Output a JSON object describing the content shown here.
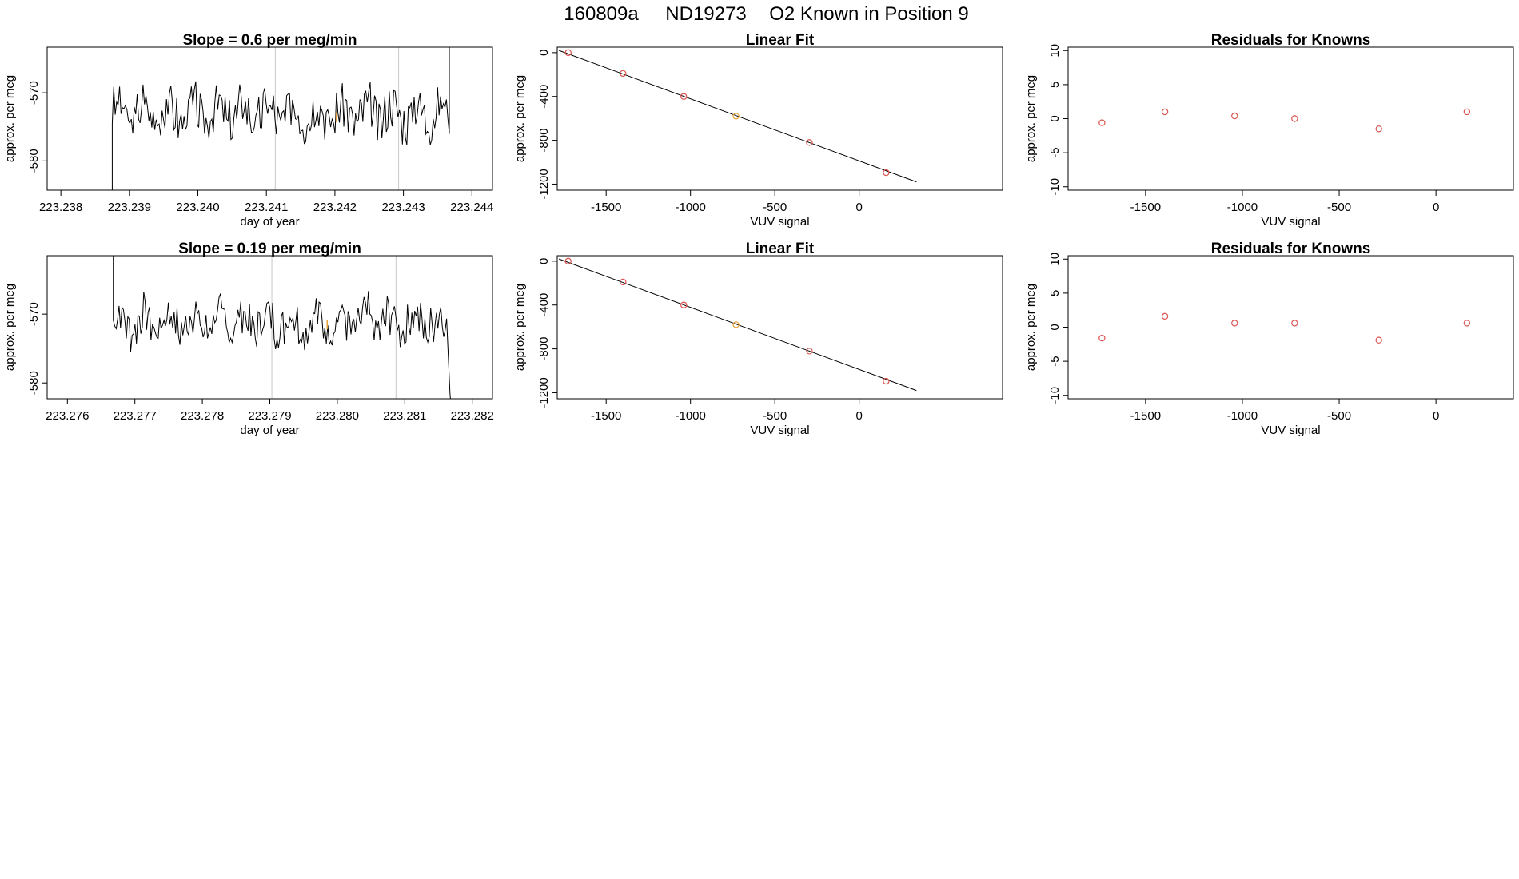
{
  "page": {
    "title_run": "160809a",
    "title_tank": "ND19273",
    "title_desc": "O2 Known in Position  9"
  },
  "chart_data": [
    {
      "id": "p1",
      "type": "line",
      "title": "Slope =  0.6  per meg/min",
      "xlabel": "day of year",
      "ylabel": "approx. per meg",
      "xlim": [
        223.2378,
        223.2443
      ],
      "ylim": [
        -584.3,
        -563.3
      ],
      "xticks": [
        223.238,
        223.239,
        223.24,
        223.241,
        223.242,
        223.243,
        223.244
      ],
      "xtick_labels": [
        "223.238",
        "223.239",
        "223.240",
        "223.241",
        "223.242",
        "223.243",
        "223.244"
      ],
      "yticks": [
        -580,
        -570
      ],
      "ytick_labels": [
        "-580",
        "-570"
      ],
      "vlines": [
        223.24113,
        223.24293
      ],
      "marker": {
        "x": 223.24202,
        "y": -573.6,
        "color": "#e8a23a"
      },
      "series_seed": 3,
      "trace_start": 223.23875,
      "trace_end": 223.24367,
      "trace_base": -573.0,
      "trace_amp": 3.4
    },
    {
      "id": "p2",
      "type": "scatter",
      "title": "Linear Fit",
      "xlabel": "VUV signal",
      "ylabel": "approx. per meg",
      "xlim": [
        -1790,
        850
      ],
      "ylim": [
        -1255,
        50
      ],
      "xticks": [
        -1500,
        -1000,
        -500,
        0
      ],
      "xtick_labels": [
        "-1500",
        "-1000",
        "-500",
        "0"
      ],
      "yticks": [
        0,
        -400,
        -800,
        -1200
      ],
      "ytick_labels": [
        "0",
        "-400",
        "-800",
        "-1200"
      ],
      "x": [
        -1725,
        -1400,
        -1040,
        -730,
        -295,
        160
      ],
      "y": [
        0,
        -190,
        -400,
        -580,
        -820,
        -1095
      ],
      "point_colors": [
        "#d9534f",
        "#d9534f",
        "#d9534f",
        "#e8a23a",
        "#d9534f",
        "#d9534f"
      ],
      "fit_line": {
        "x": [
          -1780,
          340
        ],
        "y": [
          20,
          -1180
        ]
      }
    },
    {
      "id": "p3",
      "type": "scatter",
      "title": "Residuals for Knowns",
      "xlabel": "VUV signal",
      "ylabel": "approx. per meg",
      "xlim": [
        -1900,
        400
      ],
      "ylim": [
        -10.5,
        10.5
      ],
      "xticks": [
        -1500,
        -1000,
        -500,
        0
      ],
      "xtick_labels": [
        "-1500",
        "-1000",
        "-500",
        "0"
      ],
      "yticks": [
        -10,
        -5,
        0,
        5,
        10
      ],
      "ytick_labels": [
        "-10",
        "-5",
        "0",
        "5",
        "10"
      ],
      "x": [
        -1725,
        -1400,
        -1040,
        -730,
        -295,
        160
      ],
      "y": [
        -0.6,
        1.0,
        0.4,
        0.0,
        -1.5,
        1.0
      ],
      "point_colors": [
        "#d9534f",
        "#d9534f",
        "#d9534f",
        "#d9534f",
        "#d9534f",
        "#d9534f"
      ]
    },
    {
      "id": "p4",
      "type": "line",
      "title": "Slope =  0.19  per meg/min",
      "xlabel": "day of year",
      "ylabel": "approx. per meg",
      "xlim": [
        223.2757,
        223.2823
      ],
      "ylim": [
        -582.3,
        -561.5
      ],
      "xticks": [
        223.276,
        223.277,
        223.278,
        223.279,
        223.28,
        223.281,
        223.282
      ],
      "xtick_labels": [
        "223.276",
        "223.277",
        "223.278",
        "223.279",
        "223.280",
        "223.281",
        "223.282"
      ],
      "yticks": [
        -580,
        -570
      ],
      "ytick_labels": [
        "-580",
        "-570"
      ],
      "vlines": [
        223.27903,
        223.28087
      ],
      "marker": {
        "x": 223.27985,
        "y": -571.5,
        "color": "#e8a23a"
      },
      "series_seed": 7,
      "trace_start": 223.27668,
      "trace_end": 223.28162,
      "trace_base": -571.2,
      "trace_amp": 3.2
    },
    {
      "id": "p5",
      "type": "scatter",
      "title": "Linear Fit",
      "xlabel": "VUV signal",
      "ylabel": "approx. per meg",
      "xlim": [
        -1790,
        850
      ],
      "ylim": [
        -1255,
        50
      ],
      "xticks": [
        -1500,
        -1000,
        -500,
        0
      ],
      "xtick_labels": [
        "-1500",
        "-1000",
        "-500",
        "0"
      ],
      "yticks": [
        0,
        -400,
        -800,
        -1200
      ],
      "ytick_labels": [
        "0",
        "-400",
        "-800",
        "-1200"
      ],
      "x": [
        -1725,
        -1400,
        -1040,
        -730,
        -295,
        160
      ],
      "y": [
        0,
        -190,
        -400,
        -580,
        -820,
        -1095
      ],
      "point_colors": [
        "#d9534f",
        "#d9534f",
        "#d9534f",
        "#e8a23a",
        "#d9534f",
        "#d9534f"
      ],
      "fit_line": {
        "x": [
          -1780,
          340
        ],
        "y": [
          20,
          -1180
        ]
      }
    },
    {
      "id": "p6",
      "type": "scatter",
      "title": "Residuals for Knowns",
      "xlabel": "VUV signal",
      "ylabel": "approx. per meg",
      "xlim": [
        -1900,
        400
      ],
      "ylim": [
        -10.5,
        10.5
      ],
      "xticks": [
        -1500,
        -1000,
        -500,
        0
      ],
      "xtick_labels": [
        "-1500",
        "-1000",
        "-500",
        "0"
      ],
      "yticks": [
        -10,
        -5,
        0,
        5,
        10
      ],
      "ytick_labels": [
        "-10",
        "-5",
        "0",
        "5",
        "10"
      ],
      "x": [
        -1725,
        -1400,
        -1040,
        -730,
        -295,
        160
      ],
      "y": [
        -1.6,
        1.6,
        0.6,
        0.6,
        -1.9,
        0.6
      ],
      "point_colors": [
        "#d9534f",
        "#d9534f",
        "#d9534f",
        "#d9534f",
        "#d9534f",
        "#d9534f"
      ]
    }
  ]
}
